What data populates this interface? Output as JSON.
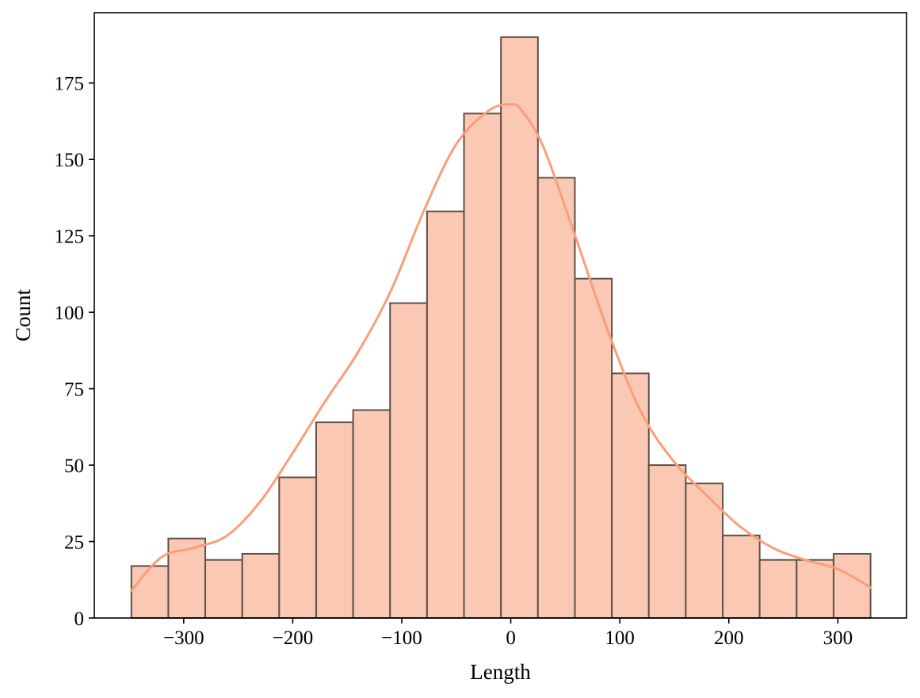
{
  "chart_data": {
    "type": "bar",
    "subtype": "histogram",
    "xlabel": "Length",
    "ylabel": "Count",
    "xlim": [
      -382,
      363
    ],
    "ylim": [
      0,
      198
    ],
    "bin_edges": [
      -348,
      -314.1,
      -280.2,
      -246.3,
      -212.4,
      -178.5,
      -144.6,
      -110.7,
      -76.8,
      -42.9,
      -9,
      24.9,
      58.8,
      92.7,
      126.6,
      160.5,
      194.4,
      228.3,
      262.2,
      296.1,
      330
    ],
    "values": [
      17,
      26,
      19,
      21,
      46,
      64,
      68,
      103,
      133,
      165,
      190,
      144,
      111,
      80,
      50,
      44,
      27,
      19,
      19,
      21
    ],
    "x_ticks": [
      -300,
      -200,
      -100,
      0,
      100,
      200,
      300
    ],
    "x_tick_labels": [
      "−300",
      "−200",
      "−100",
      "0",
      "100",
      "200",
      "300"
    ],
    "y_ticks": [
      0,
      25,
      50,
      75,
      100,
      125,
      150,
      175
    ],
    "y_tick_labels": [
      "0",
      "25",
      "50",
      "75",
      "100",
      "125",
      "150",
      "175"
    ],
    "kde": {
      "x": [
        -348,
        -320,
        -290,
        -260,
        -230,
        -200,
        -170,
        -140,
        -110,
        -80,
        -50,
        -20,
        0,
        10,
        30,
        60,
        90,
        120,
        150,
        180,
        210,
        240,
        270,
        300,
        330
      ],
      "y": [
        9,
        20,
        23,
        27,
        38,
        54,
        71,
        87,
        107,
        133,
        155,
        166,
        168,
        166,
        154,
        124,
        93,
        67,
        51,
        40,
        30,
        23,
        19,
        16,
        10
      ]
    },
    "grid": false,
    "legend": "none",
    "colors": {
      "bar_fill": "#fbc8b4",
      "bar_edge": "#5e5048",
      "kde_line": "#fa9e79"
    }
  }
}
